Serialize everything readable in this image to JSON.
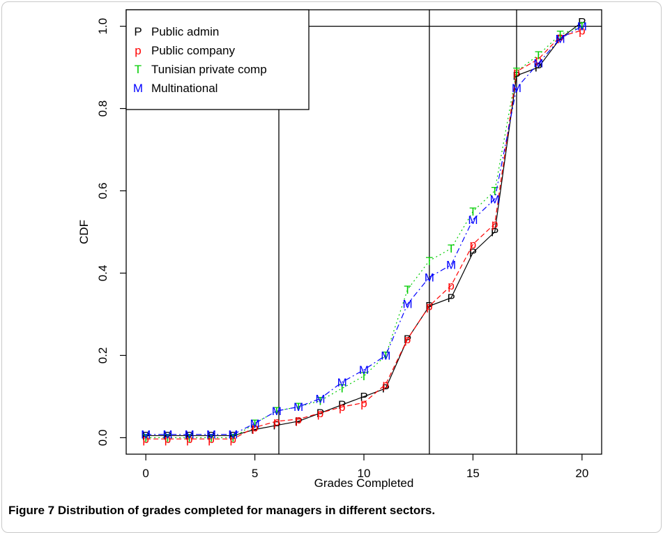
{
  "caption": "Figure 7 Distribution of grades completed for managers in different sectors.",
  "chart_data": {
    "type": "line",
    "title": "",
    "xlabel": "Grades Completed",
    "ylabel": "CDF",
    "xlim": [
      -0.9,
      20.9
    ],
    "ylim": [
      -0.04,
      1.04
    ],
    "xticks": [
      0,
      5,
      10,
      15,
      20
    ],
    "xtick_labels": [
      "0",
      "5",
      "10",
      "15",
      "20"
    ],
    "yticks": [
      0.0,
      0.2,
      0.4,
      0.6,
      0.8,
      1.0
    ],
    "ytick_labels": [
      "0.0",
      "0.2",
      "0.4",
      "0.6",
      "0.8",
      "1.0"
    ],
    "vlines": [
      6.1,
      13,
      17
    ],
    "hlines": [
      1.0
    ],
    "legend_position": "top-left",
    "x": [
      0,
      1,
      2,
      3,
      4,
      5,
      6,
      7,
      8,
      9,
      10,
      11,
      12,
      13,
      14,
      15,
      16,
      17,
      18,
      19,
      20
    ],
    "series": [
      {
        "name": "Public admin",
        "marker": "P",
        "color": "#000000",
        "dash": "",
        "values": [
          0.005,
          0.005,
          0.005,
          0.005,
          0.005,
          0.02,
          0.03,
          0.04,
          0.06,
          0.08,
          0.1,
          0.12,
          0.24,
          0.32,
          0.34,
          0.45,
          0.5,
          0.88,
          0.9,
          0.97,
          1.01
        ]
      },
      {
        "name": "Public company",
        "marker": "p",
        "color": "#ff0000",
        "dash": "7,4",
        "values": [
          -0.003,
          -0.003,
          -0.003,
          -0.003,
          -0.003,
          0.025,
          0.04,
          0.045,
          0.06,
          0.075,
          0.085,
          0.13,
          0.24,
          0.32,
          0.37,
          0.47,
          0.52,
          0.89,
          0.92,
          0.975,
          0.99
        ]
      },
      {
        "name": "Tunisian private comp",
        "marker": "T",
        "color": "#00cc00",
        "dash": "2,4",
        "values": [
          0.0,
          0.0,
          0.0,
          0.0,
          0.0,
          0.035,
          0.065,
          0.075,
          0.09,
          0.12,
          0.15,
          0.2,
          0.36,
          0.43,
          0.46,
          0.55,
          0.6,
          0.89,
          0.93,
          0.98,
          1.0
        ]
      },
      {
        "name": "Multinational",
        "marker": "M",
        "color": "#0000ff",
        "dash": "8,4,2,4",
        "values": [
          0.008,
          0.008,
          0.008,
          0.008,
          0.008,
          0.035,
          0.065,
          0.075,
          0.095,
          0.135,
          0.165,
          0.2,
          0.325,
          0.39,
          0.42,
          0.53,
          0.58,
          0.85,
          0.91,
          0.97,
          1.0
        ]
      }
    ]
  }
}
